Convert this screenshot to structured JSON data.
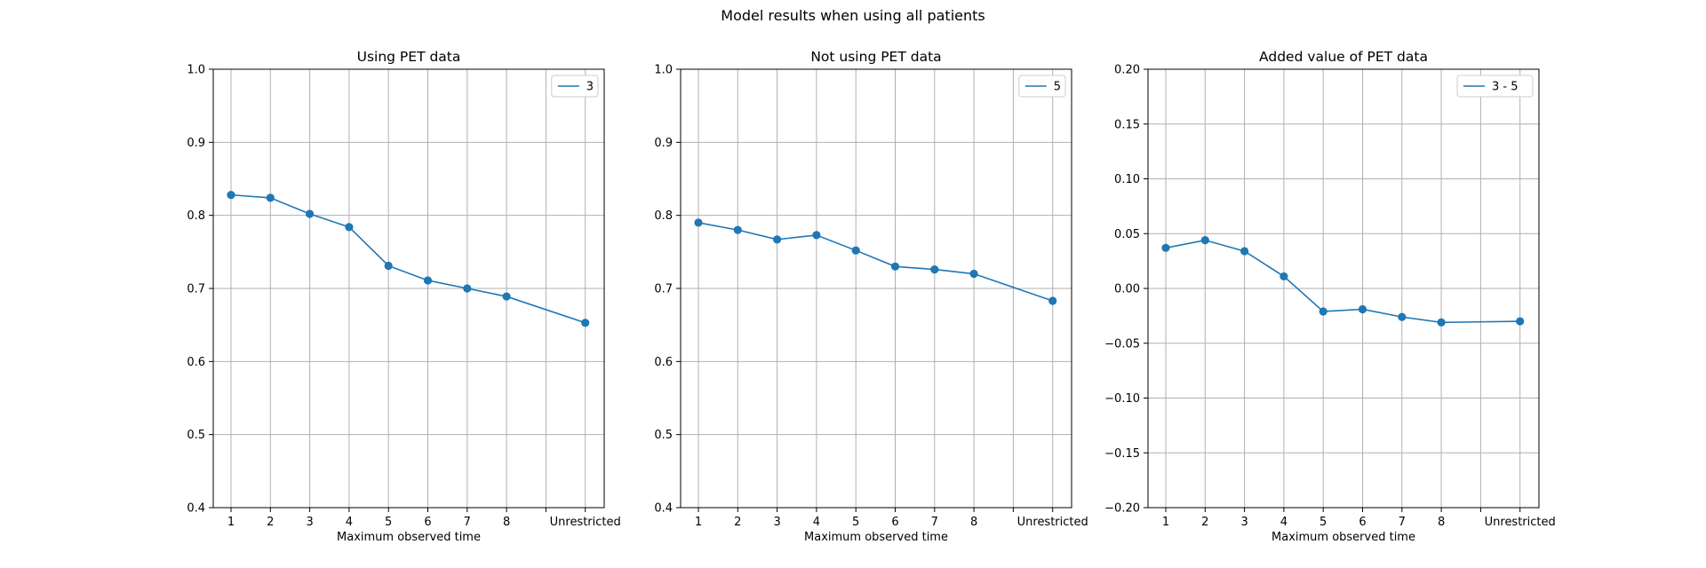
{
  "figure": {
    "suptitle": "Model results when using all patients"
  },
  "colors": {
    "series": "#1f77b4",
    "grid": "#b0b0b0",
    "axes": "#000000"
  },
  "chart_data": [
    {
      "type": "line",
      "title": "Using PET data",
      "xlabel": "Maximum observed time",
      "ylabel": "",
      "x_categories": [
        "1",
        "2",
        "3",
        "4",
        "5",
        "6",
        "7",
        "8",
        "",
        "Unrestricted"
      ],
      "ylim": [
        0.4,
        1.0
      ],
      "yticks": [
        "0.4",
        "0.5",
        "0.6",
        "0.7",
        "0.8",
        "0.9",
        "1.0"
      ],
      "grid": true,
      "legend_position": "top-right",
      "series": [
        {
          "name": "3",
          "marker": "circle",
          "points": [
            {
              "x": "1",
              "y": 0.828
            },
            {
              "x": "2",
              "y": 0.824
            },
            {
              "x": "3",
              "y": 0.802
            },
            {
              "x": "4",
              "y": 0.784
            },
            {
              "x": "5",
              "y": 0.731
            },
            {
              "x": "6",
              "y": 0.711
            },
            {
              "x": "7",
              "y": 0.7
            },
            {
              "x": "8",
              "y": 0.689
            },
            {
              "x": "Unrestricted",
              "y": 0.653
            }
          ]
        }
      ]
    },
    {
      "type": "line",
      "title": "Not using PET data",
      "xlabel": "Maximum observed time",
      "ylabel": "",
      "x_categories": [
        "1",
        "2",
        "3",
        "4",
        "5",
        "6",
        "7",
        "8",
        "",
        "Unrestricted"
      ],
      "ylim": [
        0.4,
        1.0
      ],
      "yticks": [
        "0.4",
        "0.5",
        "0.6",
        "0.7",
        "0.8",
        "0.9",
        "1.0"
      ],
      "grid": true,
      "legend_position": "top-right",
      "series": [
        {
          "name": "5",
          "marker": "circle",
          "points": [
            {
              "x": "1",
              "y": 0.79
            },
            {
              "x": "2",
              "y": 0.78
            },
            {
              "x": "3",
              "y": 0.767
            },
            {
              "x": "4",
              "y": 0.773
            },
            {
              "x": "5",
              "y": 0.752
            },
            {
              "x": "6",
              "y": 0.73
            },
            {
              "x": "7",
              "y": 0.726
            },
            {
              "x": "8",
              "y": 0.72
            },
            {
              "x": "Unrestricted",
              "y": 0.683
            }
          ]
        }
      ]
    },
    {
      "type": "line",
      "title": "Added value of PET data",
      "xlabel": "Maximum observed time",
      "ylabel": "",
      "x_categories": [
        "1",
        "2",
        "3",
        "4",
        "5",
        "6",
        "7",
        "8",
        "",
        "Unrestricted"
      ],
      "ylim": [
        -0.2,
        0.2
      ],
      "yticks": [
        "−0.20",
        "−0.15",
        "−0.10",
        "−0.05",
        "0.00",
        "0.05",
        "0.10",
        "0.15",
        "0.20"
      ],
      "grid": true,
      "legend_position": "top-right",
      "series": [
        {
          "name": "3 - 5",
          "marker": "circle",
          "points": [
            {
              "x": "1",
              "y": 0.037
            },
            {
              "x": "2",
              "y": 0.044
            },
            {
              "x": "3",
              "y": 0.034
            },
            {
              "x": "4",
              "y": 0.011
            },
            {
              "x": "5",
              "y": -0.021
            },
            {
              "x": "6",
              "y": -0.019
            },
            {
              "x": "7",
              "y": -0.026
            },
            {
              "x": "8",
              "y": -0.031
            },
            {
              "x": "Unrestricted",
              "y": -0.03
            }
          ]
        }
      ]
    }
  ]
}
